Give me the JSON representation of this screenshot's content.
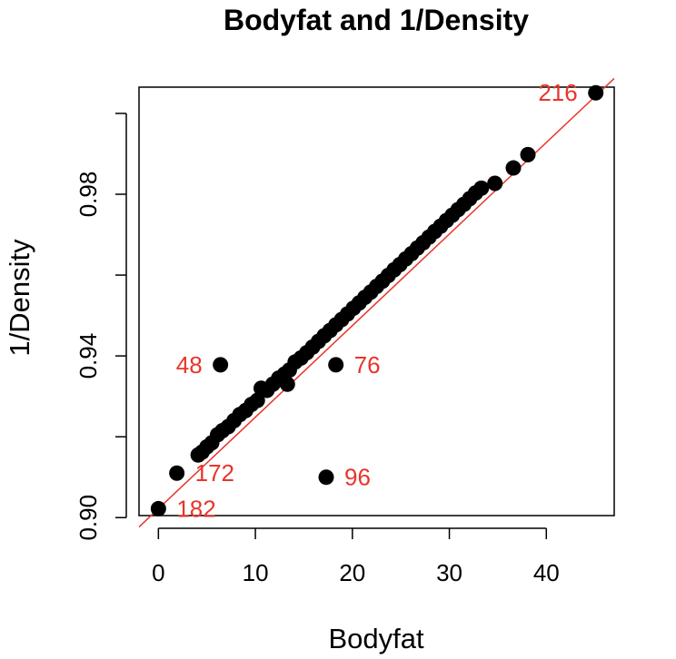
{
  "chart_data": {
    "type": "scatter",
    "title": "Bodyfat and 1/Density",
    "xlabel": "Bodyfat",
    "ylabel": "1/Density",
    "xlim": [
      -2.0,
      47.0
    ],
    "ylim": [
      0.9005,
      1.0065
    ],
    "x_ticks": [
      0,
      10,
      20,
      30,
      40
    ],
    "x_tick_labels": [
      "0",
      "10",
      "20",
      "30",
      "40"
    ],
    "y_ticks": [
      0.9,
      0.92,
      0.94,
      0.96,
      0.98,
      1.0
    ],
    "y_tick_labels": [
      "0.90",
      "",
      "0.94",
      "",
      "0.98",
      ""
    ],
    "grid": false,
    "colors": {
      "points": "#000000",
      "fit_line": "#e8352b",
      "labels": "#e8352b"
    },
    "fit_line": {
      "intercept": 0.9022,
      "slope": 0.002265
    },
    "points": {
      "x": [
        0.0,
        1.9,
        4.1,
        4.5,
        5.0,
        5.5,
        6.1,
        6.6,
        7.2,
        7.8,
        8.4,
        9.0,
        9.6,
        10.2,
        10.6,
        11.2,
        11.8,
        12.4,
        13.0,
        13.5,
        13.3,
        14.1,
        14.7,
        15.3,
        15.9,
        16.5,
        17.1,
        17.7,
        18.3,
        18.9,
        19.5,
        20.1,
        20.7,
        21.3,
        21.9,
        22.5,
        23.1,
        23.7,
        24.3,
        24.9,
        25.5,
        26.1,
        26.7,
        27.3,
        27.9,
        28.5,
        29.1,
        29.7,
        30.3,
        30.9,
        31.5,
        32.1,
        32.7,
        33.3,
        34.7,
        36.6,
        38.1,
        45.1,
        6.4,
        18.3,
        17.3
      ],
      "y": [
        0.9022,
        0.911,
        0.9155,
        0.9162,
        0.9175,
        0.9185,
        0.9205,
        0.9215,
        0.9225,
        0.924,
        0.9255,
        0.9265,
        0.928,
        0.929,
        0.932,
        0.9315,
        0.933,
        0.9345,
        0.9355,
        0.9365,
        0.933,
        0.9385,
        0.9395,
        0.9408,
        0.9422,
        0.9436,
        0.945,
        0.9463,
        0.9477,
        0.949,
        0.9504,
        0.9518,
        0.9531,
        0.9545,
        0.9558,
        0.9572,
        0.9585,
        0.9599,
        0.9613,
        0.9626,
        0.964,
        0.9653,
        0.9667,
        0.968,
        0.9694,
        0.9708,
        0.9721,
        0.9735,
        0.9748,
        0.9762,
        0.9775,
        0.9789,
        0.9803,
        0.9815,
        0.9827,
        0.9865,
        0.9898,
        1.0051,
        0.9378,
        0.9378,
        0.91
      ]
    },
    "annotations": [
      {
        "label": "216",
        "x": 45.1,
        "y": 1.0051,
        "side": "left"
      },
      {
        "label": "48",
        "x": 6.4,
        "y": 0.9378,
        "side": "left"
      },
      {
        "label": "76",
        "x": 18.3,
        "y": 0.9378,
        "side": "right"
      },
      {
        "label": "172",
        "x": 1.9,
        "y": 0.911,
        "side": "right"
      },
      {
        "label": "96",
        "x": 17.3,
        "y": 0.91,
        "side": "right"
      },
      {
        "label": "182",
        "x": 0.0,
        "y": 0.9022,
        "side": "right"
      }
    ]
  }
}
